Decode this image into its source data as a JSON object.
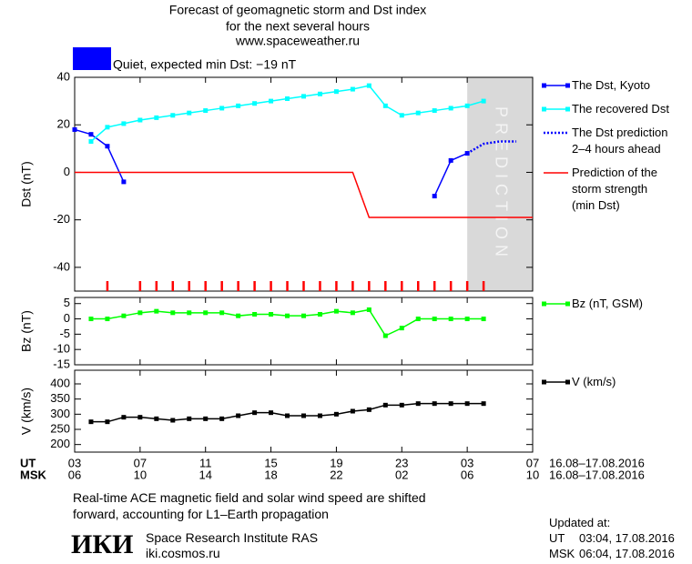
{
  "header": {
    "lines": [
      "Forecast of geomagnetic storm and Dst index",
      "for the next several hours",
      "www.spaceweather.ru"
    ]
  },
  "status": {
    "text": "Quiet, expected min Dst: −19 nT",
    "color": "#0000ff"
  },
  "x_axis": {
    "xlim": [
      0,
      28
    ],
    "rows": [
      {
        "name": "UT",
        "range": "16.08–17.08.2016",
        "ticks": [
          {
            "value": 0,
            "label": "03"
          },
          {
            "value": 4,
            "label": "07"
          },
          {
            "value": 8,
            "label": "11"
          },
          {
            "value": 12,
            "label": "15"
          },
          {
            "value": 16,
            "label": "19"
          },
          {
            "value": 20,
            "label": "23"
          },
          {
            "value": 24,
            "label": "03"
          },
          {
            "value": 28,
            "label": "07"
          }
        ]
      },
      {
        "name": "MSK",
        "range": "16.08–17.08.2016",
        "ticks": [
          {
            "value": 0,
            "label": "06"
          },
          {
            "value": 4,
            "label": "10"
          },
          {
            "value": 8,
            "label": "14"
          },
          {
            "value": 12,
            "label": "18"
          },
          {
            "value": 16,
            "label": "22"
          },
          {
            "value": 20,
            "label": "02"
          },
          {
            "value": 24,
            "label": "06"
          },
          {
            "value": 28,
            "label": "10"
          }
        ]
      }
    ]
  },
  "chart_data": [
    {
      "type": "line",
      "ylabel": "Dst (nT)",
      "ylim": [
        -50,
        40
      ],
      "yticks": [
        -40,
        -20,
        0,
        20,
        40
      ],
      "prediction_label": "PREDICTION",
      "prediction_xlim": [
        24,
        28
      ],
      "marks_color": "#ff0000",
      "marks_x": [
        2,
        4,
        5,
        6,
        7,
        8,
        9,
        10,
        11,
        12,
        13,
        14,
        15,
        16,
        17,
        18,
        19,
        20,
        21,
        22,
        23,
        24,
        25
      ],
      "series": [
        {
          "name": "The Dst, Kyoto",
          "color": "#0000ff",
          "marker": true,
          "x": [
            0,
            1,
            2,
            3,
            4,
            22,
            23,
            24
          ],
          "values": [
            18,
            16,
            11,
            -4,
            null,
            -10,
            5,
            8
          ]
        },
        {
          "name": "The recovered Dst",
          "color": "#00ffff",
          "marker": true,
          "x": [
            1,
            2,
            3,
            4,
            5,
            6,
            7,
            8,
            9,
            10,
            11,
            12,
            13,
            14,
            15,
            16,
            17,
            18,
            19,
            20,
            21,
            22,
            23,
            24,
            25
          ],
          "values": [
            13,
            19,
            20.5,
            22,
            23,
            24,
            25,
            26,
            27,
            28,
            29,
            30,
            31,
            32,
            33,
            34,
            35,
            36.5,
            28,
            24,
            25,
            26,
            27,
            28,
            30
          ]
        },
        {
          "name": "The Dst prediction\n2–4 hours ahead",
          "color": "#0000ff",
          "marker": false,
          "dash": "dotted",
          "x": [
            24,
            25,
            26,
            27
          ],
          "values": [
            8,
            12,
            13,
            13
          ]
        },
        {
          "name": "Prediction of the\nstorm strength\n(min Dst)",
          "color": "#ff0000",
          "marker": false,
          "x": [
            0,
            17,
            18,
            28
          ],
          "values": [
            0,
            0,
            -19,
            -19
          ]
        }
      ]
    },
    {
      "type": "line",
      "ylabel": "Bz (nT)",
      "ylim": [
        -15,
        7
      ],
      "yticks": [
        -15,
        -10,
        -5,
        0,
        5
      ],
      "series": [
        {
          "name": "Bz (nT, GSM)",
          "color": "#00ff00",
          "marker": true,
          "x": [
            1,
            2,
            3,
            4,
            5,
            6,
            7,
            8,
            9,
            10,
            11,
            12,
            13,
            14,
            15,
            16,
            17,
            18,
            19,
            20,
            21,
            22,
            23,
            24,
            25
          ],
          "values": [
            0,
            0,
            1,
            2,
            2.5,
            2,
            2,
            2,
            2,
            1,
            1.5,
            1.5,
            1,
            1,
            1.5,
            2.5,
            2,
            3,
            -5.5,
            -3,
            0,
            0,
            0,
            0,
            0
          ]
        }
      ]
    },
    {
      "type": "line",
      "ylabel": "V (km/s)",
      "ylim": [
        175,
        445
      ],
      "yticks": [
        200,
        250,
        300,
        350,
        400
      ],
      "series": [
        {
          "name": "V (km/s)",
          "color": "#000000",
          "marker": true,
          "x": [
            1,
            2,
            3,
            4,
            5,
            6,
            7,
            8,
            9,
            10,
            11,
            12,
            13,
            14,
            15,
            16,
            17,
            18,
            19,
            20,
            21,
            22,
            23,
            24,
            25
          ],
          "values": [
            275,
            275,
            290,
            290,
            285,
            280,
            285,
            285,
            285,
            295,
            305,
            305,
            295,
            295,
            295,
            300,
            310,
            315,
            330,
            330,
            335,
            335,
            335,
            335,
            335
          ]
        }
      ]
    }
  ],
  "footer": {
    "note": "Real-time ACE magnetic field and solar wind speed are shifted\nforward, accounting for L1–Earth propagation",
    "logo": "ИКИ",
    "institute": "Space Research Institute RAS",
    "site": "iki.cosmos.ru",
    "updated": {
      "label": "Updated at:",
      "rows": [
        {
          "zone": "UT",
          "time": "03:04, 17.08.2016"
        },
        {
          "zone": "MSK",
          "time": "06:04, 17.08.2016"
        }
      ]
    }
  }
}
